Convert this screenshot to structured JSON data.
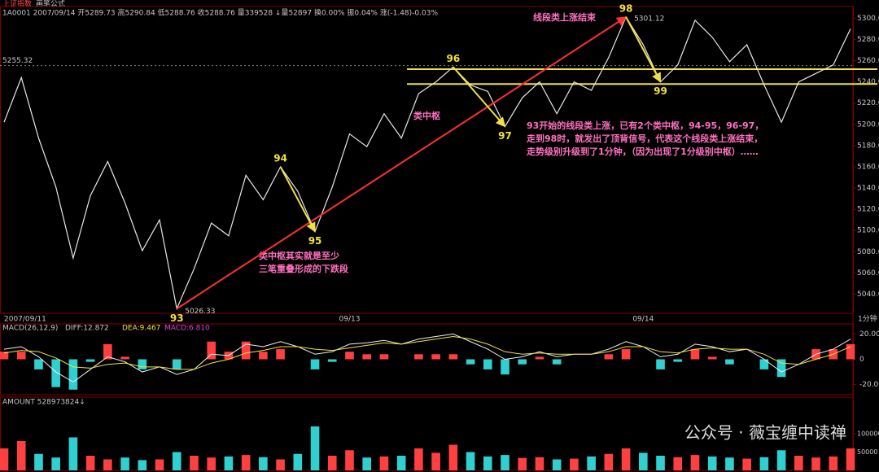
{
  "chart_data": {
    "type": "line",
    "header": [
      "上证指数",
      "画笔公式"
    ],
    "quote": "1A0001 2007/09/14 开5289.73 高5290.84 低5288.76 收5288.76 量339528 ↓量52897 换0.00% 振0.04% 涨(-1.48)-0.03%",
    "period": "1分钟",
    "categories": [
      "2007/09/11",
      null,
      null,
      null,
      null,
      null,
      null,
      null,
      null,
      null,
      null,
      null,
      null,
      null,
      null,
      null,
      null,
      null,
      null,
      null,
      "09/13",
      null,
      null,
      null,
      null,
      null,
      null,
      null,
      null,
      null,
      null,
      null,
      null,
      null,
      null,
      null,
      null,
      "09/14",
      null,
      null,
      null,
      null,
      null,
      null,
      null,
      null,
      null,
      null,
      null,
      null
    ],
    "series": [
      {
        "name": "上证指数",
        "color": "#e8e8e8",
        "values": [
          5202,
          5244,
          5187,
          5141,
          5074,
          5133,
          5165,
          5126,
          5081,
          5110,
          5026.33,
          5064,
          5107,
          5095,
          5152,
          5129,
          5160,
          5137,
          5099,
          5141,
          5191,
          5179,
          5210,
          5187,
          5229,
          5240,
          5254,
          5237,
          5231,
          5198,
          5225,
          5240,
          5210,
          5240,
          5232,
          5263,
          5301.12,
          5275,
          5240,
          5256,
          5298,
          5282,
          5259,
          5275,
          5237,
          5202,
          5240,
          5248,
          5256,
          5290
        ],
        "point_labels": [
          null,
          null,
          null,
          null,
          null,
          null,
          null,
          null,
          null,
          null,
          "93",
          null,
          null,
          null,
          null,
          null,
          "94",
          null,
          "95",
          null,
          null,
          null,
          null,
          null,
          null,
          null,
          "96",
          null,
          null,
          "97",
          null,
          null,
          null,
          null,
          null,
          null,
          "98",
          null,
          "99",
          null,
          null,
          null,
          null,
          null,
          null,
          null,
          null,
          null,
          null,
          null
        ]
      }
    ],
    "ylim": [
      5022,
      5311
    ],
    "yticks": [
      {
        "value": 5040,
        "label": "5040.00"
      },
      {
        "value": 5060,
        "label": "5060.00"
      },
      {
        "value": 5080,
        "label": "5080.00"
      },
      {
        "value": 5100,
        "label": "5100.00"
      },
      {
        "value": 5120,
        "label": "5120.00"
      },
      {
        "value": 5140,
        "label": "5140.00"
      },
      {
        "value": 5160,
        "label": "5160.00"
      },
      {
        "value": 5180,
        "label": "5180.00"
      },
      {
        "value": 5200,
        "label": "5200.00"
      },
      {
        "value": 5220,
        "label": "5220.00"
      },
      {
        "value": 5240,
        "label": "5240.00"
      },
      {
        "value": 5260,
        "label": "5260.00"
      },
      {
        "value": 5280,
        "label": "5280.00"
      },
      {
        "value": 5300,
        "label": "5300.00"
      }
    ],
    "ref_line": 5255.32,
    "hlines": [
      5252,
      5238
    ],
    "annotations": [
      "线段类上涨结束",
      "类中枢",
      "类中枢其实就是至少",
      "三笔重叠形成的下跌段",
      "93开始的线段类上涨，已有2个类中枢，94-95，96-97，",
      "走到98时，就发出了顶背信号，代表这个线段类上涨结束，",
      "走势级别升级到了1分钟，（因为出现了1分级别中枢）……"
    ],
    "macd": {
      "title": "MACD(26,12,9)",
      "readouts": [
        "DIFF:12.872",
        "DEA:9.467",
        "MACD:6.810"
      ],
      "ylim": [
        -28,
        28
      ],
      "yticks": [
        {
          "value": 20,
          "label": "20.00"
        },
        0,
        {
          "value": -20,
          "label": "-20.00"
        }
      ],
      "hist_colors": [
        "#ff4040",
        "#30d0d0"
      ],
      "hist": [
        6,
        6,
        -8,
        -22,
        -24,
        -2,
        12,
        2,
        -8,
        0,
        -8,
        0,
        14,
        6,
        14,
        6,
        8,
        0,
        -8,
        -2,
        6,
        4,
        4,
        0,
        4,
        4,
        4,
        -4,
        -8,
        -12,
        -4,
        2,
        -4,
        0,
        0,
        4,
        8,
        0,
        -8,
        -2,
        8,
        2,
        -4,
        0,
        -8,
        -14,
        0,
        8,
        8,
        12
      ],
      "series": [
        {
          "name": "DIFF",
          "color": "#f0f0f0",
          "values": [
            8,
            10,
            2,
            -10,
            -18,
            -8,
            2,
            -2,
            -10,
            -6,
            -12,
            -8,
            4,
            3,
            12,
            10,
            14,
            10,
            4,
            6,
            12,
            13,
            15,
            12,
            16,
            18,
            20,
            14,
            8,
            0,
            2,
            6,
            2,
            4,
            4,
            8,
            14,
            10,
            2,
            4,
            12,
            10,
            6,
            8,
            0,
            -10,
            -4,
            4,
            8,
            16
          ]
        },
        {
          "name": "DEA",
          "color": "#f0e040",
          "values": [
            5,
            7,
            6,
            1,
            -6,
            -7,
            -4,
            -3,
            -6,
            -6,
            -8,
            -8,
            -3,
            0,
            5,
            7,
            10,
            10,
            8,
            7,
            9,
            11,
            13,
            12,
            14,
            16,
            18,
            16,
            12,
            6,
            4,
            5,
            4,
            4,
            4,
            6,
            10,
            10,
            6,
            5,
            8,
            9,
            8,
            8,
            4,
            -3,
            -4,
            0,
            4,
            10
          ]
        }
      ]
    },
    "volume": {
      "title": "AMOUNT 528973824↓",
      "ylim": [
        0,
        200000
      ],
      "yticks": [
        50000,
        100000
      ],
      "colors": [
        "#ff4040",
        "#30d0d0"
      ],
      "values": [
        60000,
        80000,
        45000,
        35000,
        90000,
        40000,
        30000,
        35000,
        28000,
        30000,
        50000,
        40000,
        35000,
        38000,
        42000,
        36000,
        30000,
        45000,
        120000,
        40000,
        55000,
        35000,
        38000,
        40000,
        60000,
        48000,
        70000,
        50000,
        38000,
        42000,
        34000,
        36000,
        30000,
        32000,
        38000,
        45000,
        60000,
        48000,
        40000,
        36000,
        42000,
        38000,
        35000,
        32000,
        36000,
        55000,
        40000,
        35000,
        38000,
        60000
      ]
    },
    "watermark": "公众号 · 薇宝缠中读禅"
  }
}
